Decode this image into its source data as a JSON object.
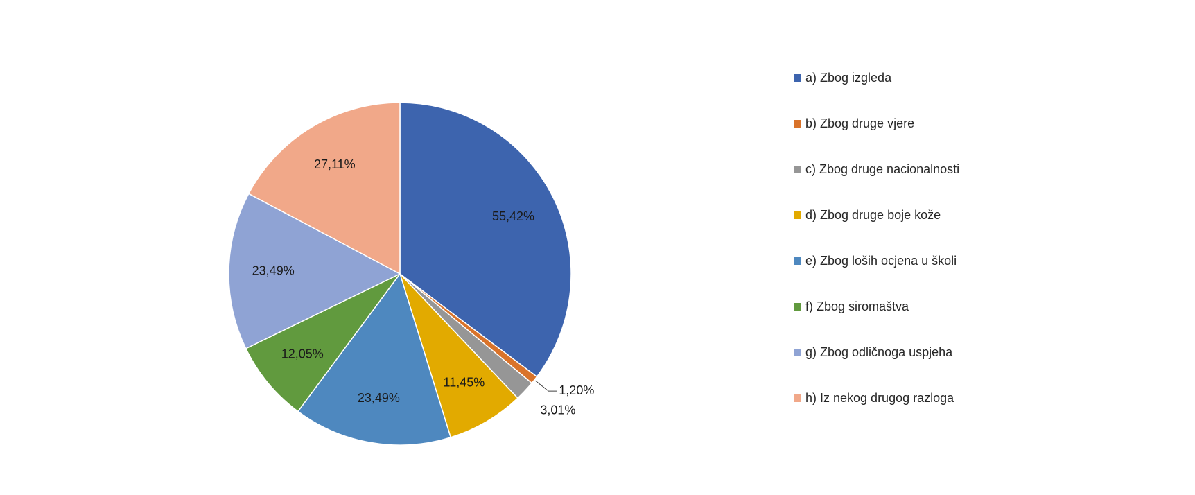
{
  "chart_data": {
    "type": "pie",
    "title": "",
    "legend_position": "right",
    "slices": [
      {
        "label": "a) Zbog izgleda",
        "value": 55.42,
        "value_label": "55,42%",
        "color": "#3D64AE"
      },
      {
        "label": "b) Zbog druge vjere",
        "value": 1.2,
        "value_label": "1,20%",
        "color": "#D9732A"
      },
      {
        "label": "c) Zbog druge nacionalnosti",
        "value": 3.01,
        "value_label": "3,01%",
        "color": "#969696"
      },
      {
        "label": "d) Zbog druge boje kože",
        "value": 11.45,
        "value_label": "11,45%",
        "color": "#E2AA00"
      },
      {
        "label": "e) Zbog loših ocjena u školi",
        "value": 23.49,
        "value_label": "23,49%",
        "color": "#4E88BF"
      },
      {
        "label": "f) Zbog siromaštva",
        "value": 12.05,
        "value_label": "12,05%",
        "color": "#619A3E"
      },
      {
        "label": "g) Zbog odličnoga uspjeha",
        "value": 23.49,
        "value_label": "23,49%",
        "color": "#8FA3D4"
      },
      {
        "label": "h) Iz nekog drugog razloga",
        "value": 27.11,
        "value_label": "27,11%",
        "color": "#F1A889"
      }
    ]
  }
}
